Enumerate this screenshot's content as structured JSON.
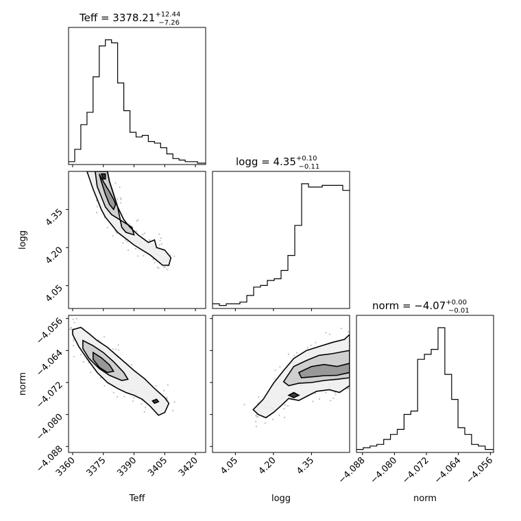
{
  "chart_data": {
    "type": "corner",
    "parameters": [
      {
        "name": "Teff",
        "axis_label": "Teff",
        "title_main": "Teff = 3378.21",
        "title_sup": "+12.44",
        "title_sub": "−7.26",
        "range": [
          3358,
          3425
        ],
        "ticks": [
          3360,
          3375,
          3390,
          3405,
          3420
        ],
        "tick_labels": [
          "3360",
          "3375",
          "3390",
          "3405",
          "3420"
        ]
      },
      {
        "name": "logg",
        "axis_label": "logg",
        "title_main": "logg = 4.35",
        "title_sup": "+0.10",
        "title_sub": "−0.11",
        "range": [
          3.96,
          4.5
        ],
        "ticks": [
          4.05,
          4.2,
          4.35
        ],
        "tick_labels": [
          "4.05",
          "4.20",
          "4.35"
        ]
      },
      {
        "name": "norm",
        "axis_label": "norm",
        "title_main": "norm = −4.07",
        "title_sup": "+0.00",
        "title_sub": "−0.01",
        "range": [
          -4.0895,
          -4.0552
        ],
        "ticks": [
          -4.088,
          -4.08,
          -4.072,
          -4.064,
          -4.056
        ],
        "tick_labels": [
          "−4.088",
          "−4.080",
          "−4.072",
          "−4.064",
          "−4.056"
        ]
      }
    ],
    "histograms": [
      {
        "param": "Teff",
        "edges": [
          3358,
          3361,
          3364,
          3367,
          3370,
          3373,
          3376,
          3379,
          3382,
          3385,
          3388,
          3391,
          3394,
          3397,
          3400,
          3403,
          3406,
          3409,
          3412,
          3415,
          3418,
          3421,
          3425
        ],
        "counts": [
          1,
          9,
          25,
          33,
          56,
          76,
          80,
          78,
          52,
          34,
          20,
          17,
          18,
          14,
          13,
          10,
          6,
          3,
          2,
          1,
          1,
          0
        ]
      },
      {
        "param": "logg",
        "edges": [
          3.96,
          3.987,
          4.014,
          4.041,
          4.068,
          4.095,
          4.122,
          4.149,
          4.176,
          4.203,
          4.23,
          4.257,
          4.284,
          4.311,
          4.338,
          4.365,
          4.392,
          4.419,
          4.446,
          4.473,
          4.5
        ],
        "counts": [
          2,
          1,
          2,
          2,
          3,
          7,
          12,
          13,
          16,
          17,
          22,
          31,
          49,
          74,
          72,
          72,
          73,
          73,
          73,
          70
        ]
      },
      {
        "param": "norm",
        "edges": [
          -4.0895,
          -4.0878,
          -4.0861,
          -4.0844,
          -4.0827,
          -4.081,
          -4.0793,
          -4.0776,
          -4.0759,
          -4.0742,
          -4.0725,
          -4.0708,
          -4.0691,
          -4.0674,
          -4.0657,
          -4.0641,
          -4.0624,
          -4.0607,
          -4.059,
          -4.0573,
          -4.0552
        ],
        "counts": [
          1,
          2,
          3,
          4,
          7,
          10,
          13,
          22,
          24,
          55,
          58,
          61,
          74,
          46,
          31,
          14,
          10,
          4,
          3,
          1
        ]
      }
    ],
    "pairs": [
      {
        "x": "Teff",
        "y": "logg",
        "contours": [
          [
            [
              3367,
              4.5
            ],
            [
              3370,
              4.43
            ],
            [
              3372,
              4.39
            ],
            [
              3374,
              4.35
            ],
            [
              3376,
              4.32
            ],
            [
              3379,
              4.29
            ],
            [
              3382,
              4.26
            ],
            [
              3386,
              4.235
            ],
            [
              3390,
              4.21
            ],
            [
              3394,
              4.19
            ],
            [
              3398,
              4.17
            ],
            [
              3401,
              4.15
            ],
            [
              3404,
              4.13
            ],
            [
              3407,
              4.13
            ],
            [
              3408,
              4.16
            ],
            [
              3405,
              4.19
            ],
            [
              3401,
              4.2
            ],
            [
              3400,
              4.23
            ],
            [
              3397,
              4.22
            ],
            [
              3392,
              4.25
            ],
            [
              3388,
              4.28
            ],
            [
              3385,
              4.31
            ],
            [
              3382,
              4.36
            ],
            [
              3380,
              4.41
            ],
            [
              3378,
              4.46
            ],
            [
              3377,
              4.5
            ]
          ],
          [
            [
              3371,
              4.5
            ],
            [
              3372,
              4.44
            ],
            [
              3374,
              4.4
            ],
            [
              3376,
              4.36
            ],
            [
              3379,
              4.33
            ],
            [
              3383,
              4.31
            ],
            [
              3389,
              4.28
            ],
            [
              3390,
              4.25
            ],
            [
              3386,
              4.26
            ],
            [
              3384,
              4.28
            ],
            [
              3383,
              4.32
            ],
            [
              3382,
              4.36
            ],
            [
              3380,
              4.41
            ],
            [
              3378,
              4.46
            ],
            [
              3377,
              4.5
            ]
          ],
          [
            [
              3373,
              4.49
            ],
            [
              3375,
              4.46
            ],
            [
              3378,
              4.42
            ],
            [
              3380,
              4.39
            ],
            [
              3381,
              4.37
            ],
            [
              3380,
              4.35
            ],
            [
              3378,
              4.37
            ],
            [
              3376,
              4.41
            ],
            [
              3374,
              4.46
            ],
            [
              3373,
              4.49
            ]
          ],
          [
            [
              3374,
              4.49
            ],
            [
              3375,
              4.47
            ],
            [
              3376,
              4.47
            ],
            [
              3376,
              4.49
            ]
          ]
        ]
      },
      {
        "x": "Teff",
        "y": "norm",
        "contours": [
          [
            [
              3360,
              -4.0588
            ],
            [
              3364,
              -4.0582
            ],
            [
              3368,
              -4.0598
            ],
            [
              3372,
              -4.0615
            ],
            [
              3377,
              -4.0632
            ],
            [
              3381,
              -4.065
            ],
            [
              3386,
              -4.0672
            ],
            [
              3390,
              -4.069
            ],
            [
              3395,
              -4.071
            ],
            [
              3400,
              -4.0735
            ],
            [
              3405,
              -4.0758
            ],
            [
              3407,
              -4.0772
            ],
            [
              3405,
              -4.0795
            ],
            [
              3402,
              -4.0802
            ],
            [
              3398,
              -4.078
            ],
            [
              3394,
              -4.0762
            ],
            [
              3390,
              -4.0752
            ],
            [
              3386,
              -4.0745
            ],
            [
              3382,
              -4.0735
            ],
            [
              3377,
              -4.072
            ],
            [
              3372,
              -4.0695
            ],
            [
              3367,
              -4.066
            ],
            [
              3363,
              -4.063
            ],
            [
              3360,
              -4.06
            ]
          ],
          [
            [
              3365,
              -4.0615
            ],
            [
              3370,
              -4.0628
            ],
            [
              3375,
              -4.0645
            ],
            [
              3380,
              -4.0668
            ],
            [
              3385,
              -4.0695
            ],
            [
              3387,
              -4.0712
            ],
            [
              3384,
              -4.0715
            ],
            [
              3378,
              -4.0702
            ],
            [
              3373,
              -4.0685
            ],
            [
              3368,
              -4.066
            ],
            [
              3365,
              -4.0635
            ]
          ],
          [
            [
              3370,
              -4.0645
            ],
            [
              3374,
              -4.0658
            ],
            [
              3378,
              -4.0676
            ],
            [
              3380,
              -4.0692
            ],
            [
              3377,
              -4.0695
            ],
            [
              3373,
              -4.0682
            ],
            [
              3370,
              -4.0662
            ]
          ],
          [
            [
              3399,
              -4.0766
            ],
            [
              3401,
              -4.0762
            ],
            [
              3402,
              -4.0768
            ],
            [
              3400,
              -4.0772
            ]
          ]
        ]
      },
      {
        "x": "logg",
        "y": "norm",
        "contours": [
          [
            [
              4.12,
              -4.0788
            ],
            [
              4.16,
              -4.0762
            ],
            [
              4.2,
              -4.0722
            ],
            [
              4.24,
              -4.069
            ],
            [
              4.28,
              -4.066
            ],
            [
              4.33,
              -4.064
            ],
            [
              4.38,
              -4.063
            ],
            [
              4.43,
              -4.062
            ],
            [
              4.48,
              -4.0612
            ],
            [
              4.5,
              -4.06
            ],
            [
              4.5,
              -4.0728
            ],
            [
              4.46,
              -4.0745
            ],
            [
              4.42,
              -4.0738
            ],
            [
              4.37,
              -4.0742
            ],
            [
              4.33,
              -4.0755
            ],
            [
              4.3,
              -4.0765
            ],
            [
              4.26,
              -4.076
            ],
            [
              4.23,
              -4.0778
            ],
            [
              4.2,
              -4.0795
            ],
            [
              4.17,
              -4.0808
            ],
            [
              4.14,
              -4.08
            ]
          ],
          [
            [
              4.24,
              -4.0718
            ],
            [
              4.28,
              -4.068
            ],
            [
              4.33,
              -4.0665
            ],
            [
              4.38,
              -4.0652
            ],
            [
              4.43,
              -4.0648
            ],
            [
              4.48,
              -4.0642
            ],
            [
              4.5,
              -4.064
            ],
            [
              4.5,
              -4.0708
            ],
            [
              4.45,
              -4.0712
            ],
            [
              4.4,
              -4.0715
            ],
            [
              4.35,
              -4.072
            ],
            [
              4.3,
              -4.0722
            ],
            [
              4.26,
              -4.0728
            ]
          ],
          [
            [
              4.3,
              -4.0695
            ],
            [
              4.35,
              -4.068
            ],
            [
              4.4,
              -4.0675
            ],
            [
              4.45,
              -4.068
            ],
            [
              4.5,
              -4.0672
            ],
            [
              4.5,
              -4.0695
            ],
            [
              4.45,
              -4.0702
            ],
            [
              4.4,
              -4.0703
            ],
            [
              4.35,
              -4.0706
            ],
            [
              4.31,
              -4.0708
            ]
          ],
          [
            [
              4.26,
              -4.0752
            ],
            [
              4.28,
              -4.0745
            ],
            [
              4.3,
              -4.0752
            ],
            [
              4.28,
              -4.0758
            ]
          ]
        ]
      }
    ]
  }
}
